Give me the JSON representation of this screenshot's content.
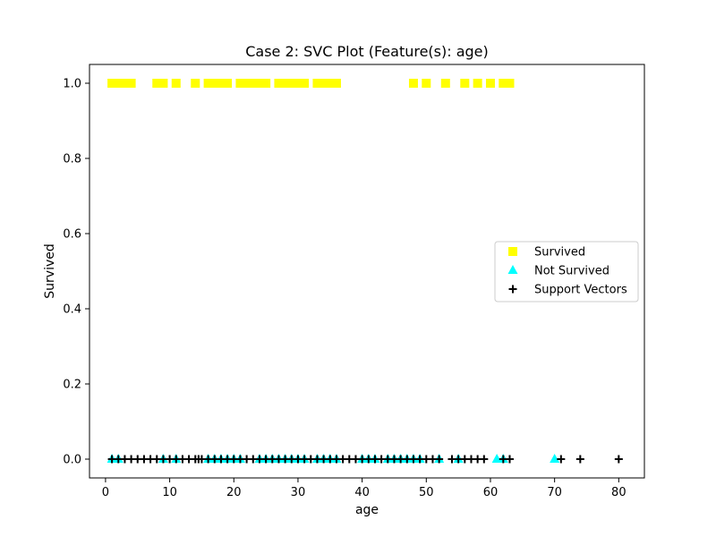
{
  "chart_data": {
    "type": "scatter",
    "title": "Case 2: SVC Plot (Feature(s): age)",
    "xlabel": "age",
    "ylabel": "Survived",
    "xlim": [
      -2.5,
      84
    ],
    "ylim": [
      -0.05,
      1.05
    ],
    "xticks": [
      0,
      10,
      20,
      30,
      40,
      50,
      60,
      70,
      80
    ],
    "xtick_labels": [
      "0",
      "10",
      "20",
      "30",
      "40",
      "50",
      "60",
      "70",
      "80"
    ],
    "yticks": [
      0.0,
      0.2,
      0.4,
      0.6,
      0.8,
      1.0
    ],
    "ytick_labels": [
      "0.0",
      "0.2",
      "0.4",
      "0.6",
      "0.8",
      "1.0"
    ],
    "grid": false,
    "legend_position": "center-right",
    "series": [
      {
        "name": "Survived",
        "marker": "square",
        "color": "#ffff00",
        "x": [
          1,
          2,
          3,
          4,
          8,
          9,
          11,
          14,
          16,
          17,
          18,
          19,
          21,
          22,
          23,
          24,
          25,
          27,
          28,
          29,
          30,
          31,
          33,
          34,
          35,
          36,
          48,
          50,
          53,
          56,
          58,
          60,
          62,
          63
        ],
        "y": [
          1,
          1,
          1,
          1,
          1,
          1,
          1,
          1,
          1,
          1,
          1,
          1,
          1,
          1,
          1,
          1,
          1,
          1,
          1,
          1,
          1,
          1,
          1,
          1,
          1,
          1,
          1,
          1,
          1,
          1,
          1,
          1,
          1,
          1
        ]
      },
      {
        "name": "Not Survived",
        "marker": "triangle",
        "color": "#00ffff",
        "x": [
          1,
          2,
          9,
          11,
          16,
          17,
          18,
          19,
          20,
          21,
          24,
          25,
          26,
          27,
          28,
          29,
          30,
          31,
          33,
          34,
          35,
          36,
          40,
          41,
          42,
          44,
          45,
          46,
          47,
          48,
          49,
          52,
          55,
          61,
          62,
          70
        ],
        "y": [
          0,
          0,
          0,
          0,
          0,
          0,
          0,
          0,
          0,
          0,
          0,
          0,
          0,
          0,
          0,
          0,
          0,
          0,
          0,
          0,
          0,
          0,
          0,
          0,
          0,
          0,
          0,
          0,
          0,
          0,
          0,
          0,
          0,
          0,
          0,
          0
        ]
      },
      {
        "name": "Support Vectors",
        "marker": "plus",
        "color": "#000000",
        "x": [
          1,
          2,
          3,
          4,
          5,
          6,
          7,
          8,
          9,
          10,
          11,
          12,
          13,
          14,
          14.5,
          15,
          16,
          17,
          18,
          19,
          20,
          21,
          22,
          23,
          24,
          25,
          26,
          27,
          28,
          29,
          30,
          31,
          32,
          33,
          34,
          35,
          36,
          37,
          38,
          39,
          40,
          41,
          42,
          43,
          44,
          45,
          46,
          47,
          48,
          49,
          50,
          51,
          52,
          54,
          55,
          56,
          57,
          58,
          59,
          62,
          63,
          71,
          74,
          80
        ],
        "y": [
          0,
          0,
          0,
          0,
          0,
          0,
          0,
          0,
          0,
          0,
          0,
          0,
          0,
          0,
          0,
          0,
          0,
          0,
          0,
          0,
          0,
          0,
          0,
          0,
          0,
          0,
          0,
          0,
          0,
          0,
          0,
          0,
          0,
          0,
          0,
          0,
          0,
          0,
          0,
          0,
          0,
          0,
          0,
          0,
          0,
          0,
          0,
          0,
          0,
          0,
          0,
          0,
          0,
          0,
          0,
          0,
          0,
          0,
          0,
          0,
          0,
          0,
          0,
          0
        ]
      }
    ]
  }
}
